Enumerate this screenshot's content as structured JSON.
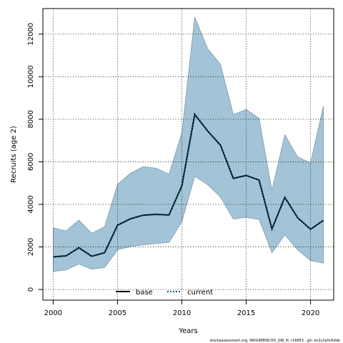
{
  "chart_data": {
    "type": "line",
    "title": "",
    "xlabel": "Years",
    "ylabel": "Recruits (age 2)",
    "xlim": [
      1999.2,
      2021.8
    ],
    "ylim": [
      -500,
      13200
    ],
    "x_ticks": [
      2000,
      2005,
      2010,
      2015,
      2020
    ],
    "y_ticks": [
      0,
      2000,
      4000,
      6000,
      8000,
      10000,
      12000
    ],
    "grid": true,
    "legend_position": "bottom-center",
    "years": [
      2000,
      2001,
      2002,
      2003,
      2004,
      2005,
      2006,
      2007,
      2008,
      2009,
      2010,
      2011,
      2012,
      2013,
      2014,
      2015,
      2016,
      2017,
      2018,
      2019,
      2020,
      2021
    ],
    "series": [
      {
        "name": "base",
        "style": "solid",
        "color": "#000000",
        "values": [
          1530,
          1580,
          1960,
          1560,
          1730,
          3020,
          3320,
          3490,
          3530,
          3500,
          4870,
          8230,
          7450,
          6780,
          5220,
          5360,
          5140,
          2840,
          4330,
          3370,
          2830,
          3250
        ]
      },
      {
        "name": "current",
        "style": "dotted",
        "color": "#0b4f7a",
        "values": [
          1530,
          1580,
          1960,
          1560,
          1730,
          3020,
          3320,
          3490,
          3530,
          3500,
          4870,
          8230,
          7450,
          6780,
          5220,
          5360,
          5140,
          2840,
          4330,
          3370,
          2830,
          3250
        ]
      }
    ],
    "band": {
      "color": "#a3c4d6",
      "upper": [
        2900,
        2750,
        3260,
        2640,
        2950,
        4940,
        5460,
        5770,
        5700,
        5420,
        7360,
        12800,
        11320,
        10580,
        8220,
        8460,
        8040,
        4650,
        7270,
        6230,
        5940,
        8620
      ],
      "lower": [
        850,
        920,
        1200,
        950,
        1030,
        1860,
        2020,
        2100,
        2160,
        2210,
        3180,
        5320,
        4930,
        4340,
        3310,
        3390,
        3290,
        1730,
        2560,
        1860,
        1360,
        1240
      ]
    }
  },
  "footer": "stockassessment.org,  WKGREENCOD_GRI_N,  r16853 ,  git:  ec2c2a0c6dde"
}
